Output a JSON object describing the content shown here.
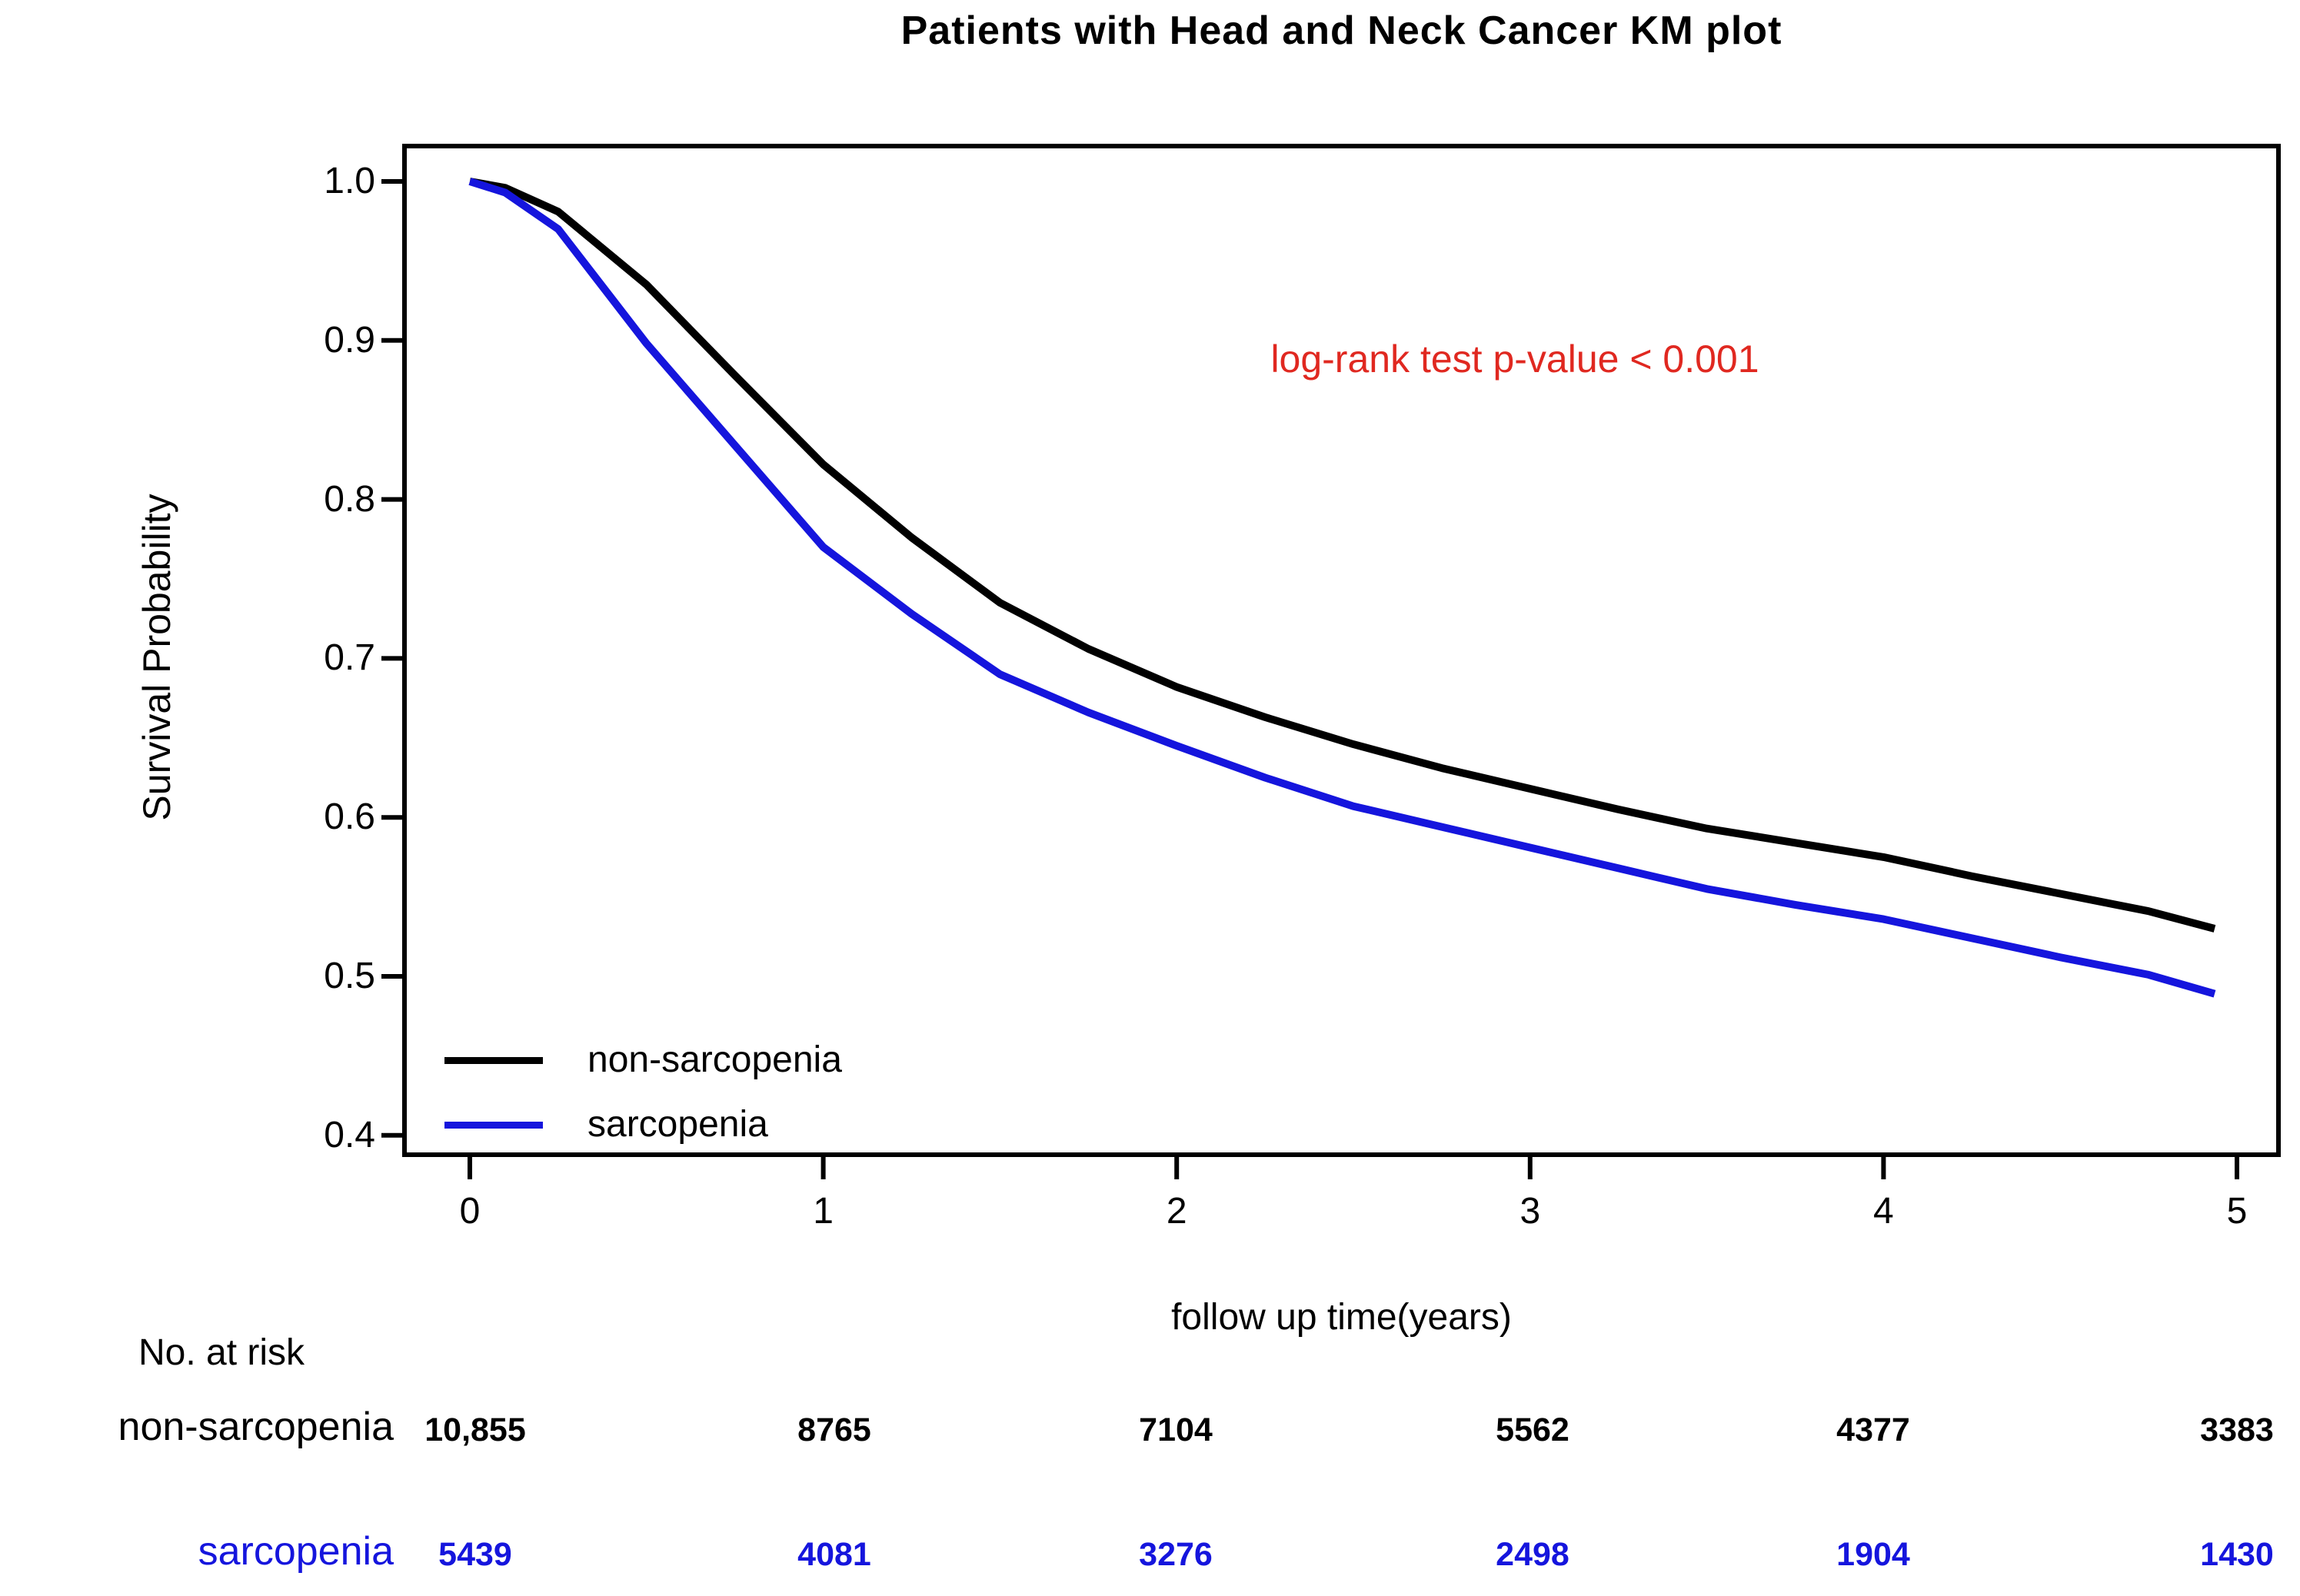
{
  "chart_data": {
    "type": "line",
    "title": "Patients with Head and Neck Cancer KM plot",
    "xlabel": "follow up time(years)",
    "ylabel": "Survival Probability",
    "x_ticks": [
      0,
      1,
      2,
      3,
      4,
      5
    ],
    "y_ticks": [
      1.0,
      0.9,
      0.8,
      0.7,
      0.6,
      0.5,
      0.4
    ],
    "xlim": [
      -0.185,
      5.117
    ],
    "ylim": [
      0.388,
      1.022
    ],
    "grid": false,
    "legend_position": "bottom-left-inside",
    "annotation": {
      "text": "log-rank test p-value < 0.001",
      "color": "#e02820"
    },
    "x": [
      0,
      0.1,
      0.25,
      0.5,
      0.75,
      1,
      1.25,
      1.5,
      1.75,
      2,
      2.25,
      2.5,
      2.75,
      3,
      3.25,
      3.5,
      3.75,
      4,
      4.25,
      4.5,
      4.75,
      5
    ],
    "series": [
      {
        "name": "non-sarcopenia",
        "color": "#000000",
        "values": [
          1.0,
          0.996,
          0.981,
          0.935,
          0.878,
          0.822,
          0.776,
          0.735,
          0.706,
          0.682,
          0.663,
          0.646,
          0.631,
          0.618,
          0.605,
          0.593,
          0.584,
          0.575,
          0.563,
          0.552,
          0.541,
          0.53
        ]
      },
      {
        "name": "sarcopenia",
        "color": "#1515dd",
        "values": [
          1.0,
          0.993,
          0.97,
          0.898,
          0.834,
          0.77,
          0.728,
          0.69,
          0.666,
          0.645,
          0.625,
          0.607,
          0.594,
          0.581,
          0.568,
          0.555,
          0.545,
          0.536,
          0.524,
          0.512,
          0.501,
          0.489
        ]
      }
    ]
  },
  "risk_table": {
    "title": "No. at risk",
    "rows": [
      {
        "label": "non-sarcopenia",
        "color": "#000000",
        "values": [
          "10,855",
          "8765",
          "7104",
          "5562",
          "4377",
          "3383"
        ]
      },
      {
        "label": "sarcopenia",
        "color": "#1515dd",
        "values": [
          "5439",
          "4081",
          "3276",
          "2498",
          "1904",
          "1430"
        ]
      }
    ]
  }
}
